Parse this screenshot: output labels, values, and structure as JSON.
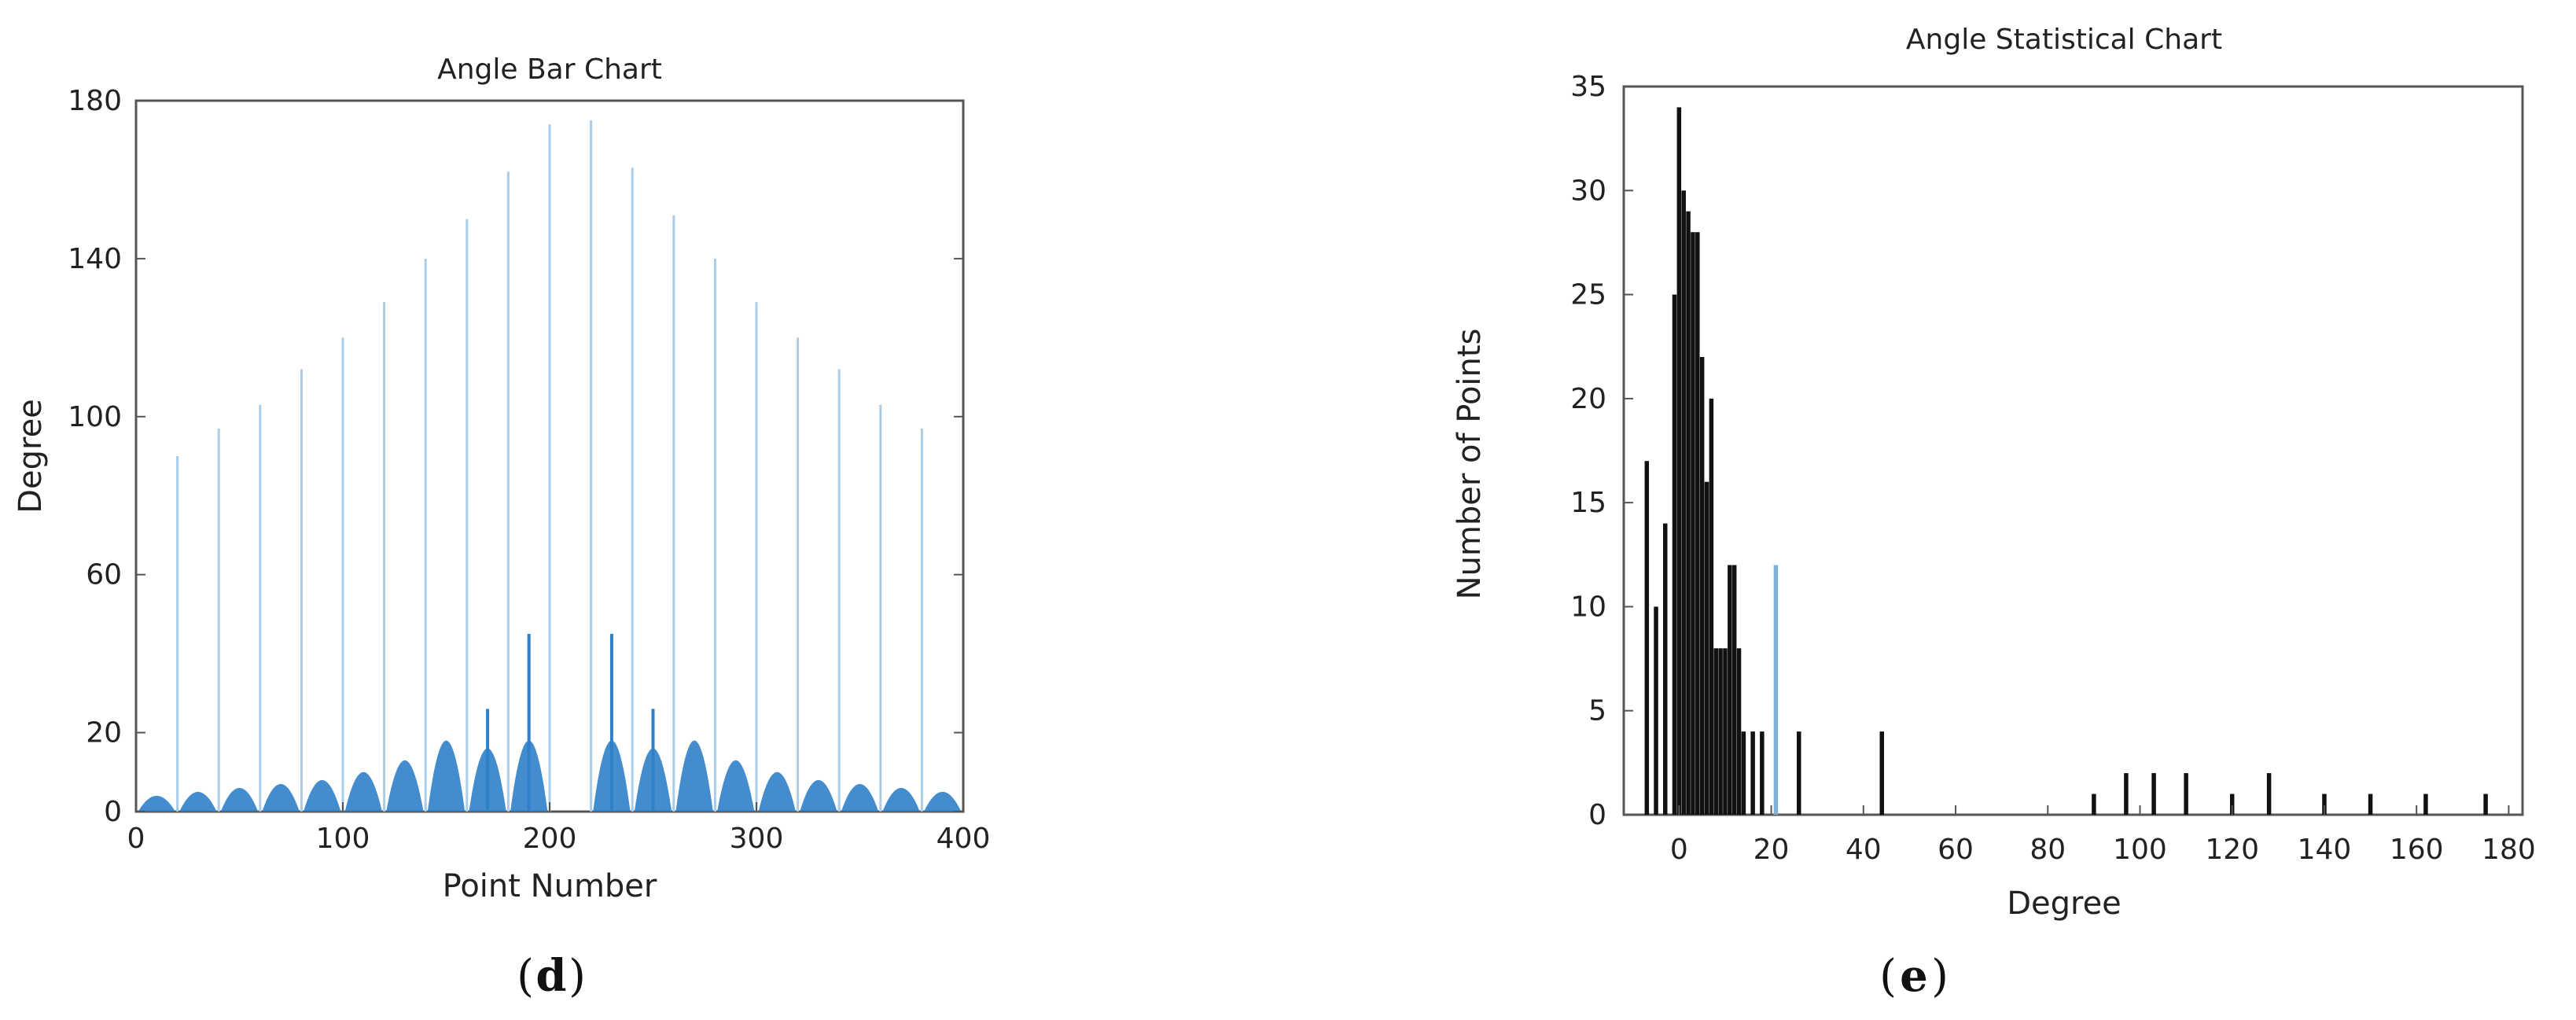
{
  "chart_data": [
    {
      "type": "bar",
      "title": "Angle Bar Chart",
      "xlabel": "Point Number",
      "ylabel": "Degree",
      "xlim": [
        0,
        400
      ],
      "ylim": [
        0,
        180
      ],
      "xticks": [
        "0",
        "100",
        "200",
        "300",
        "400"
      ],
      "yticks": [
        "0",
        "20",
        "60",
        "100",
        "140",
        "180"
      ],
      "color": "#2f80c8",
      "light_color": "#a9cde9",
      "panel_label": "d",
      "bars": [
        {
          "x": 20,
          "y": 90,
          "shade": "light"
        },
        {
          "x": 40,
          "y": 97,
          "shade": "light"
        },
        {
          "x": 60,
          "y": 103,
          "shade": "light"
        },
        {
          "x": 80,
          "y": 112,
          "shade": "light"
        },
        {
          "x": 100,
          "y": 120,
          "shade": "light"
        },
        {
          "x": 120,
          "y": 129,
          "shade": "light"
        },
        {
          "x": 140,
          "y": 140,
          "shade": "light"
        },
        {
          "x": 160,
          "y": 150,
          "shade": "light"
        },
        {
          "x": 180,
          "y": 162,
          "shade": "light"
        },
        {
          "x": 200,
          "y": 174,
          "shade": "light"
        },
        {
          "x": 220,
          "y": 175,
          "shade": "light"
        },
        {
          "x": 240,
          "y": 163,
          "shade": "light"
        },
        {
          "x": 260,
          "y": 151,
          "shade": "light"
        },
        {
          "x": 280,
          "y": 140,
          "shade": "light"
        },
        {
          "x": 300,
          "y": 129,
          "shade": "light"
        },
        {
          "x": 320,
          "y": 120,
          "shade": "light"
        },
        {
          "x": 340,
          "y": 112,
          "shade": "light"
        },
        {
          "x": 360,
          "y": 103,
          "shade": "light"
        },
        {
          "x": 380,
          "y": 97,
          "shade": "light"
        },
        {
          "x": 170,
          "y": 26,
          "shade": "dark"
        },
        {
          "x": 190,
          "y": 45,
          "shade": "dark"
        },
        {
          "x": 230,
          "y": 45,
          "shade": "dark"
        },
        {
          "x": 250,
          "y": 26,
          "shade": "dark"
        }
      ],
      "bumps": [
        {
          "x": 10,
          "y": 4
        },
        {
          "x": 30,
          "y": 5
        },
        {
          "x": 50,
          "y": 6
        },
        {
          "x": 70,
          "y": 7
        },
        {
          "x": 90,
          "y": 8
        },
        {
          "x": 110,
          "y": 10
        },
        {
          "x": 130,
          "y": 13
        },
        {
          "x": 150,
          "y": 18
        },
        {
          "x": 170,
          "y": 16
        },
        {
          "x": 190,
          "y": 18
        },
        {
          "x": 230,
          "y": 18
        },
        {
          "x": 250,
          "y": 16
        },
        {
          "x": 270,
          "y": 18
        },
        {
          "x": 290,
          "y": 13
        },
        {
          "x": 310,
          "y": 10
        },
        {
          "x": 330,
          "y": 8
        },
        {
          "x": 350,
          "y": 7
        },
        {
          "x": 370,
          "y": 6
        },
        {
          "x": 390,
          "y": 5
        }
      ]
    },
    {
      "type": "bar",
      "title": "Angle Statistical Chart",
      "xlabel": "Degree",
      "ylabel": "Number of Points",
      "xlim": [
        -12,
        183
      ],
      "ylim": [
        0,
        35
      ],
      "xticks": [
        "0",
        "20",
        "40",
        "60",
        "80",
        "100",
        "120",
        "140",
        "160",
        "180"
      ],
      "yticks": [
        "0",
        "5",
        "10",
        "15",
        "20",
        "25",
        "30",
        "35"
      ],
      "color": "#111111",
      "highlight_color": "#7fb0d8",
      "panel_label": "e",
      "bars": [
        {
          "x": -7,
          "y": 17
        },
        {
          "x": -5,
          "y": 10
        },
        {
          "x": -3,
          "y": 14
        },
        {
          "x": -1,
          "y": 25
        },
        {
          "x": 0,
          "y": 34
        },
        {
          "x": 1,
          "y": 30
        },
        {
          "x": 2,
          "y": 29
        },
        {
          "x": 3,
          "y": 28
        },
        {
          "x": 4,
          "y": 28
        },
        {
          "x": 5,
          "y": 22
        },
        {
          "x": 6,
          "y": 16
        },
        {
          "x": 7,
          "y": 20
        },
        {
          "x": 8,
          "y": 8
        },
        {
          "x": 9,
          "y": 8
        },
        {
          "x": 10,
          "y": 8
        },
        {
          "x": 11,
          "y": 12
        },
        {
          "x": 12,
          "y": 12
        },
        {
          "x": 13,
          "y": 8
        },
        {
          "x": 14,
          "y": 4
        },
        {
          "x": 16,
          "y": 4
        },
        {
          "x": 18,
          "y": 4
        },
        {
          "x": 21,
          "y": 12,
          "highlight": true
        },
        {
          "x": 26,
          "y": 4
        },
        {
          "x": 44,
          "y": 4
        },
        {
          "x": 90,
          "y": 1
        },
        {
          "x": 97,
          "y": 2
        },
        {
          "x": 103,
          "y": 2
        },
        {
          "x": 110,
          "y": 2
        },
        {
          "x": 120,
          "y": 1
        },
        {
          "x": 128,
          "y": 2
        },
        {
          "x": 140,
          "y": 1
        },
        {
          "x": 150,
          "y": 1
        },
        {
          "x": 162,
          "y": 1
        },
        {
          "x": 175,
          "y": 1
        }
      ]
    }
  ],
  "panel_labels": {
    "left": "d",
    "right": "e"
  }
}
